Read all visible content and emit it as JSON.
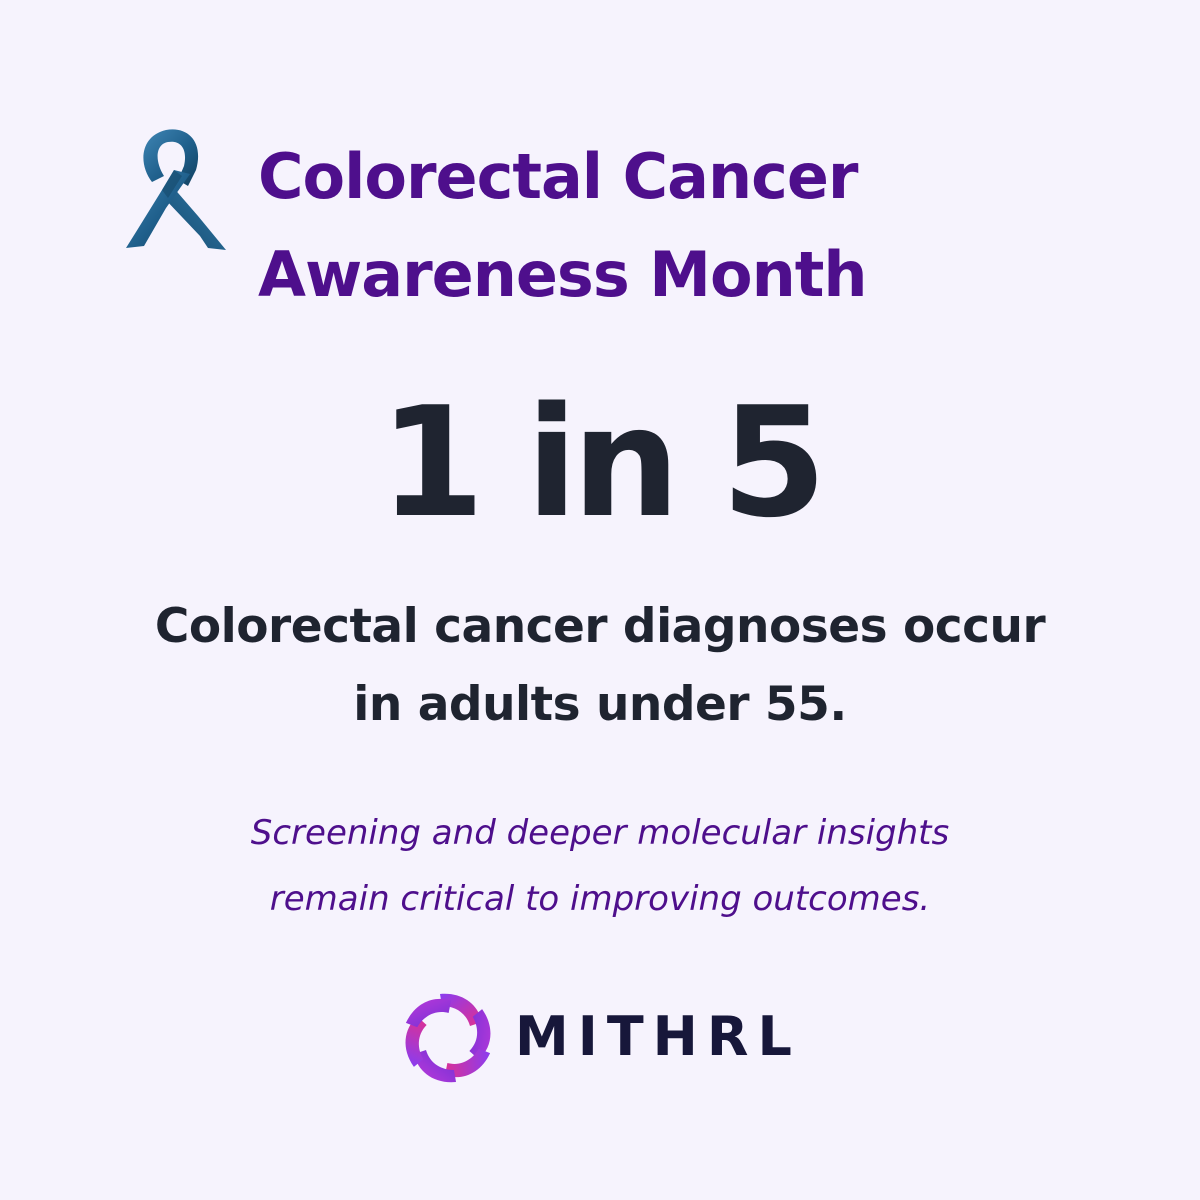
{
  "header": {
    "icon": "awareness-ribbon-icon",
    "title_line1": "Colorectal Cancer",
    "title_line2": "Awareness Month"
  },
  "statistic": {
    "value": "1 in 5"
  },
  "description": {
    "line1": "Colorectal cancer diagnoses occur",
    "line2": "in adults under 55."
  },
  "note": {
    "line1": "Screening and deeper molecular insights",
    "line2": "remain critical to improving outcomes."
  },
  "brand": {
    "logo_icon": "mithrl-logo-icon",
    "name": "MITHRL"
  },
  "colors": {
    "background": "#f6f3fd",
    "heading_purple": "#4e0f8c",
    "text_dark": "#1f2430",
    "ribbon_blue": "#1f5f8b",
    "brand_navy": "#17173a",
    "logo_magenta": "#e0308f",
    "logo_violet": "#8a3cf0"
  }
}
